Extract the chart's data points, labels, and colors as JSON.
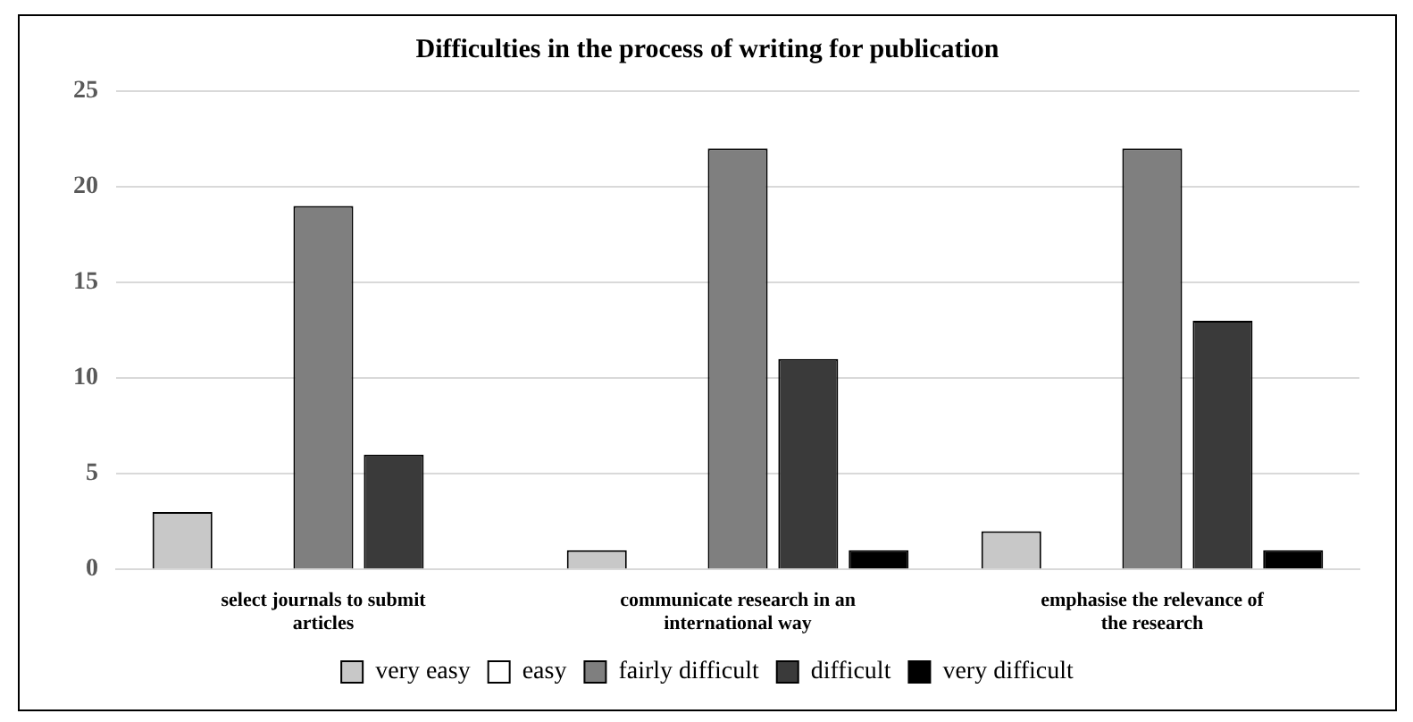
{
  "chart_data": {
    "type": "bar",
    "title": "Difficulties in the process of writing for publication",
    "categories": [
      "select journals to submit articles",
      "communicate research in an international way",
      "emphasise the relevance of the research"
    ],
    "series": [
      {
        "name": "very easy",
        "color": "#c8c8c8",
        "values": [
          3,
          1,
          2
        ]
      },
      {
        "name": "easy",
        "color": "#ffffff",
        "values": [
          0,
          0,
          0
        ]
      },
      {
        "name": "fairly difficult",
        "color": "#7f7f7f",
        "values": [
          19,
          22,
          22
        ]
      },
      {
        "name": "difficult",
        "color": "#3a3a3a",
        "values": [
          6,
          11,
          13
        ]
      },
      {
        "name": "very difficult",
        "color": "#000000",
        "values": [
          0,
          1,
          1
        ]
      }
    ],
    "ylim": [
      0,
      25
    ],
    "yticks": [
      0,
      5,
      10,
      15,
      20,
      25
    ],
    "grid": "y",
    "legend": "bottom"
  }
}
